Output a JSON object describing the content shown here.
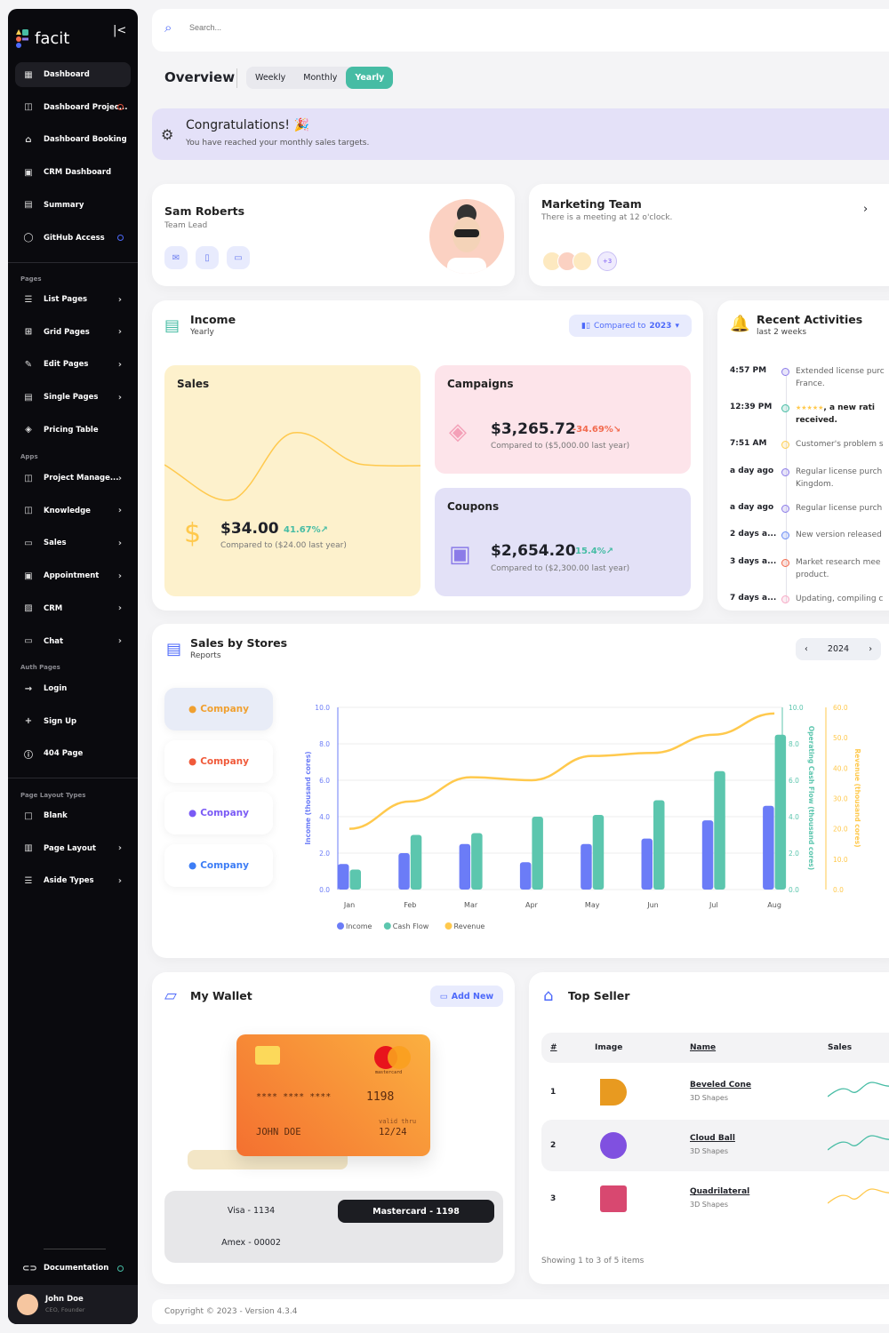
{
  "sidebar": {
    "brand": "facit",
    "sections": [
      {
        "label": "",
        "items": [
          {
            "label": "Dashboard",
            "icon": "dashboard-icon",
            "glyph": "▦",
            "active": true
          },
          {
            "label": "Dashboard Projec...",
            "icon": "book-icon",
            "glyph": "◫",
            "dot": "#e5533d"
          },
          {
            "label": "Dashboard Booking",
            "icon": "building-icon",
            "glyph": "⌂"
          },
          {
            "label": "CRM Dashboard",
            "icon": "crm-icon",
            "glyph": "▣"
          },
          {
            "label": "Summary",
            "icon": "note-icon",
            "glyph": "▤"
          },
          {
            "label": "GitHub Access",
            "icon": "github-icon",
            "glyph": "◯",
            "dot": "#4d69fa"
          }
        ]
      },
      {
        "label": "Pages",
        "items": [
          {
            "label": "List Pages",
            "icon": "list-icon",
            "glyph": "☰",
            "chev": true
          },
          {
            "label": "Grid Pages",
            "icon": "grid-icon",
            "glyph": "⊞",
            "chev": true
          },
          {
            "label": "Edit Pages",
            "icon": "edit-icon",
            "glyph": "✎",
            "chev": true
          },
          {
            "label": "Single Pages",
            "icon": "page-icon",
            "glyph": "▤",
            "chev": true
          },
          {
            "label": "Pricing Table",
            "icon": "tag-icon",
            "glyph": "◈"
          }
        ]
      },
      {
        "label": "Apps",
        "items": [
          {
            "label": "Project Manage...",
            "icon": "book-icon",
            "glyph": "◫",
            "chev": true
          },
          {
            "label": "Knowledge",
            "icon": "book-icon",
            "glyph": "◫",
            "chev": true
          },
          {
            "label": "Sales",
            "icon": "store-icon",
            "glyph": "▭",
            "chev": true
          },
          {
            "label": "Appointment",
            "icon": "calendar-icon",
            "glyph": "▣",
            "chev": true
          },
          {
            "label": "CRM",
            "icon": "contact-icon",
            "glyph": "▨",
            "chev": true
          },
          {
            "label": "Chat",
            "icon": "chat-icon",
            "glyph": "▭",
            "chev": true
          }
        ]
      },
      {
        "label": "Auth Pages",
        "items": [
          {
            "label": "Login",
            "icon": "login-icon",
            "glyph": "→"
          },
          {
            "label": "Sign Up",
            "icon": "add-user-icon",
            "glyph": "+"
          },
          {
            "label": "404 Page",
            "icon": "alert-icon",
            "glyph": "ⓘ"
          }
        ]
      },
      {
        "label": "Page Layout Types",
        "items": [
          {
            "label": "Blank",
            "icon": "square-icon",
            "glyph": "□"
          },
          {
            "label": "Page Layout",
            "icon": "layout-icon",
            "glyph": "▥",
            "chev": true
          },
          {
            "label": "Aside Types",
            "icon": "aside-icon",
            "glyph": "☰",
            "chev": true
          }
        ]
      }
    ],
    "documentation": "Documentation",
    "user": {
      "name": "John Doe",
      "role": "CEO, Founder"
    }
  },
  "search": {
    "placeholder": "Search..."
  },
  "overview": {
    "title": "Overview",
    "tabs": [
      "Weekly",
      "Monthly",
      "Yearly"
    ],
    "active_tab": "Yearly"
  },
  "banner": {
    "title": "Congratulations!",
    "text": "You have reached your monthly sales targets."
  },
  "profile": {
    "name": "Sam Roberts",
    "role": "Team Lead"
  },
  "team": {
    "title": "Marketing Team",
    "text": "There is a meeting at 12 o'clock.",
    "more": "+3"
  },
  "income": {
    "title": "Income",
    "subtitle": "Yearly",
    "compare_prefix": "Compared to ",
    "compare_year": "2023",
    "sales": {
      "label": "Sales",
      "value": "$34.00",
      "change": "41.67%",
      "compare": "Compared to ($24.00 last year)"
    },
    "campaigns": {
      "label": "Campaigns",
      "value": "$3,265.72",
      "change": "-34.69%",
      "compare": "Compared to ($5,000.00 last year)"
    },
    "coupons": {
      "label": "Coupons",
      "value": "$2,654.20",
      "change": "15.4%",
      "compare": "Compared to ($2,300.00 last year)"
    }
  },
  "activities": {
    "title": "Recent Activities",
    "subtitle": "last 2 weeks",
    "items": [
      {
        "time": "4:57 PM",
        "line1": "Extended license purc",
        "line2": "France.",
        "color": "#8b7be8"
      },
      {
        "time": "12:39 PM",
        "stars": "★★★★★",
        "line1": ", a new rati",
        "line2": "received.",
        "color": "#46bca4",
        "bold": true
      },
      {
        "time": "7:51 AM",
        "line1": "Customer's problem s",
        "color": "#ffcf52"
      },
      {
        "time": "a day ago",
        "line1": "Regular license purch",
        "line2": "Kingdom.",
        "color": "#8b7be8"
      },
      {
        "time": "a day ago",
        "line1": "Regular license purch",
        "color": "#8b7be8"
      },
      {
        "time": "2 days a...",
        "line1": "New version released",
        "color": "#6b8cf5"
      },
      {
        "time": "3 days a...",
        "line1": "Market research mee",
        "line2": "product.",
        "color": "#f26b4f"
      },
      {
        "time": "7 days a...",
        "line1": "Updating, compiling c",
        "color": "#f7a8c4"
      }
    ]
  },
  "stores": {
    "title": "Sales by Stores",
    "subtitle": "Reports",
    "year": "2024",
    "companies": [
      {
        "label": "Company",
        "color": "#f0a030"
      },
      {
        "label": "Company",
        "color": "#f05a3a"
      },
      {
        "label": "Company",
        "color": "#7a5af5"
      },
      {
        "label": "Company",
        "color": "#3d7df5"
      }
    ]
  },
  "chart_data": {
    "type": "bar",
    "categories": [
      "Jan",
      "Feb",
      "Mar",
      "Apr",
      "May",
      "Jun",
      "Jul",
      "Aug"
    ],
    "series": [
      {
        "name": "Income",
        "type": "bar",
        "color": "#6b7cf7",
        "values": [
          1.4,
          2.0,
          2.5,
          1.5,
          2.5,
          2.8,
          3.8,
          4.6
        ]
      },
      {
        "name": "Cash Flow",
        "type": "bar",
        "color": "#5cc6ae",
        "values": [
          1.1,
          3.0,
          3.1,
          4.0,
          4.1,
          4.9,
          6.5,
          8.5
        ]
      },
      {
        "name": "Revenue",
        "type": "line",
        "color": "#ffc94d",
        "values": [
          20,
          29,
          37,
          36,
          44,
          45,
          51,
          58
        ]
      }
    ],
    "axes": [
      {
        "label": "Income (thousand cores)",
        "range": [
          0,
          10
        ],
        "ticks": [
          "0.0",
          "2.0",
          "4.0",
          "6.0",
          "8.0",
          "10.0"
        ],
        "color": "#6b7cf7"
      },
      {
        "label": "Operating Cash Flow (thousand cores)",
        "range": [
          0,
          10
        ],
        "ticks": [
          "0.0",
          "2.0",
          "4.0",
          "6.0",
          "8.0",
          "10.0"
        ],
        "color": "#5cc6ae"
      },
      {
        "label": "Revenue (thousand cores)",
        "range": [
          0,
          60
        ],
        "ticks": [
          "0.0",
          "10.0",
          "20.0",
          "30.0",
          "40.0",
          "50.0",
          "60.0"
        ],
        "color": "#ffc94d"
      }
    ],
    "grid": true,
    "legend": "bottom-left"
  },
  "wallet": {
    "title": "My Wallet",
    "add_new": "Add New",
    "card": {
      "number": "****  ****  ****",
      "last4": "1198",
      "name": "JOHN DOE",
      "valid_label": "valid thru",
      "expiry": "12/24",
      "brand": "mastercard"
    },
    "options": [
      "Visa - 1134",
      "Mastercard - 1198",
      "Amex - 00002"
    ],
    "selected": "Mastercard - 1198"
  },
  "top_seller": {
    "title": "Top Seller",
    "columns": [
      "#",
      "Image",
      "Name",
      "Sales"
    ],
    "rows": [
      {
        "rank": "1",
        "name": "Beveled Cone",
        "category": "3D Shapes",
        "color": "#46bca4"
      },
      {
        "rank": "2",
        "name": "Cloud Ball",
        "category": "3D Shapes",
        "color": "#46bca4"
      },
      {
        "rank": "3",
        "name": "Quadrilateral",
        "category": "3D Shapes",
        "color": "#ffc94d"
      }
    ],
    "footer": "Showing 1 to 3 of 5 items"
  },
  "footer": {
    "text": "Copyright © 2023 - Version 4.3.4"
  }
}
